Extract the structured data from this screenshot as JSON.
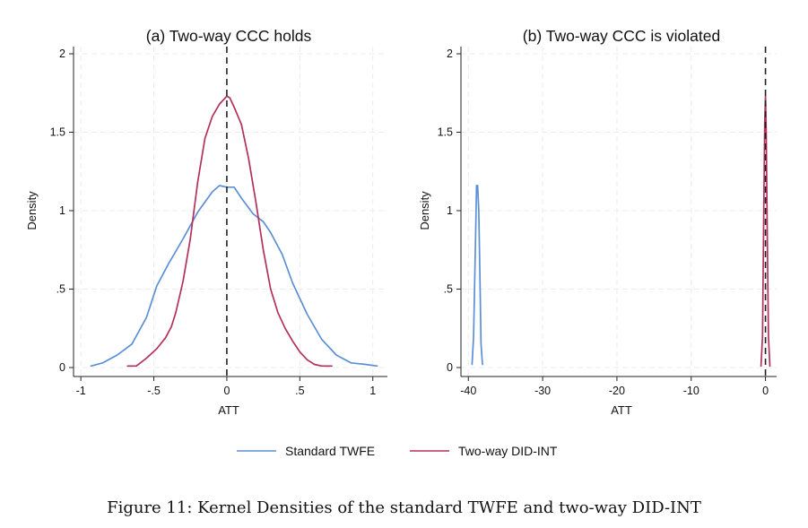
{
  "figure": {
    "caption": "Figure 11: Kernel Densities of the standard TWFE and two-way DID-INT"
  },
  "legend": {
    "entries": [
      {
        "label": "Standard TWFE",
        "color": "#5b8fd6"
      },
      {
        "label": "Two-way DID-INT",
        "color": "#b3305e"
      }
    ]
  },
  "chart_data": [
    {
      "type": "line",
      "title": "(a) Two-way CCC holds",
      "xlabel": "ATT",
      "ylabel": "Density",
      "xlim": [
        -1.05,
        1.1
      ],
      "ylim": [
        0,
        2
      ],
      "xticks": [
        -1,
        -0.5,
        0,
        0.5,
        1
      ],
      "xtick_labels": [
        "-1",
        "-.5",
        "0",
        ".5",
        "1"
      ],
      "yticks": [
        0,
        0.5,
        1,
        1.5,
        2
      ],
      "ytick_labels": [
        "0",
        ".5",
        "1",
        "1.5",
        "2"
      ],
      "grid": true,
      "vline": 0,
      "series": [
        {
          "name": "Standard TWFE",
          "color": "#5b8fd6",
          "x": [
            -0.93,
            -0.85,
            -0.75,
            -0.65,
            -0.55,
            -0.48,
            -0.4,
            -0.3,
            -0.2,
            -0.1,
            -0.05,
            0,
            0.05,
            0.1,
            0.18,
            0.25,
            0.3,
            0.38,
            0.45,
            0.55,
            0.65,
            0.75,
            0.85,
            0.95,
            1.03
          ],
          "y": [
            0.01,
            0.03,
            0.08,
            0.15,
            0.32,
            0.52,
            0.66,
            0.82,
            0.99,
            1.12,
            1.16,
            1.15,
            1.15,
            1.08,
            0.98,
            0.93,
            0.86,
            0.72,
            0.54,
            0.34,
            0.18,
            0.08,
            0.03,
            0.02,
            0.01
          ]
        },
        {
          "name": "Two-way DID-INT",
          "color": "#b3305e",
          "x": [
            -0.68,
            -0.62,
            -0.55,
            -0.48,
            -0.42,
            -0.38,
            -0.35,
            -0.3,
            -0.25,
            -0.2,
            -0.15,
            -0.1,
            -0.05,
            0,
            0.02,
            0.05,
            0.1,
            0.15,
            0.2,
            0.25,
            0.3,
            0.35,
            0.4,
            0.45,
            0.5,
            0.55,
            0.6,
            0.65,
            0.72
          ],
          "y": [
            0.01,
            0.01,
            0.06,
            0.12,
            0.19,
            0.26,
            0.35,
            0.55,
            0.82,
            1.18,
            1.46,
            1.6,
            1.68,
            1.73,
            1.72,
            1.66,
            1.55,
            1.33,
            1.05,
            0.75,
            0.5,
            0.35,
            0.25,
            0.17,
            0.1,
            0.05,
            0.02,
            0.01,
            0.01
          ]
        }
      ]
    },
    {
      "type": "line",
      "title": "(b) Two-way CCC is violated",
      "xlabel": "ATT",
      "ylabel": "Density",
      "xlim": [
        -41,
        1.5
      ],
      "ylim": [
        0,
        2
      ],
      "xticks": [
        -40,
        -30,
        -20,
        -10,
        0
      ],
      "xtick_labels": [
        "-40",
        "-30",
        "-20",
        "-10",
        "0"
      ],
      "yticks": [
        0,
        0.5,
        1,
        1.5,
        2
      ],
      "ytick_labels": [
        "0",
        ".5",
        "1",
        "1.5",
        "2"
      ],
      "grid": true,
      "vline": 0,
      "series": [
        {
          "name": "Standard TWFE",
          "color": "#5b8fd6",
          "x": [
            -39.5,
            -39.3,
            -39.05,
            -38.9,
            -38.75,
            -38.6,
            -38.45,
            -38.3,
            -38.1
          ],
          "y": [
            0.02,
            0.2,
            0.8,
            1.16,
            1.16,
            1.0,
            0.6,
            0.15,
            0.02
          ]
        },
        {
          "name": "Two-way DID-INT",
          "color": "#b3305e",
          "x": [
            -0.6,
            -0.4,
            -0.25,
            -0.1,
            0,
            0.1,
            0.25,
            0.4,
            0.6
          ],
          "y": [
            0.01,
            0.2,
            0.9,
            1.55,
            1.73,
            1.5,
            0.85,
            0.2,
            0.01
          ]
        }
      ]
    }
  ]
}
